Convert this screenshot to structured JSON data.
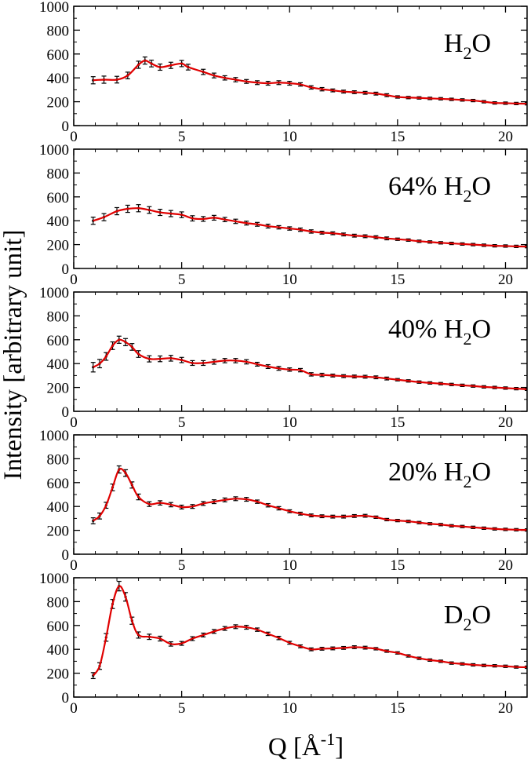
{
  "figure": {
    "ylabel": "Intensity [arbitrary unit]",
    "xlabel_main": "Q [",
    "xlabel_unit": "Å",
    "xlabel_exp": "-1",
    "xlabel_close": "]"
  },
  "chart_data": [
    {
      "type": "line",
      "panel_label": {
        "prefix": "",
        "main": "H",
        "sub": "2",
        "suffix": "O"
      },
      "xlim": [
        0,
        21
      ],
      "ylim": [
        0,
        1000
      ],
      "xticks": [
        0,
        5,
        10,
        15,
        20
      ],
      "yticks": [
        0,
        200,
        400,
        600,
        800,
        1000
      ],
      "xtick_labels": [
        "0",
        "5",
        "10",
        "15",
        "20"
      ],
      "ytick_labels": [
        "0",
        "200",
        "400",
        "600",
        "800",
        "1000"
      ],
      "series": [
        {
          "style": "data with error bars",
          "color": "#000000",
          "x": [
            0.9,
            1.4,
            2.0,
            2.5,
            3.0,
            3.3,
            3.6,
            4.0,
            4.5,
            5.0,
            5.3,
            6.0,
            6.5,
            7.0,
            7.5,
            8.0,
            8.5,
            9.0,
            9.5,
            10.0,
            10.5,
            11.0,
            11.5,
            12.0,
            12.5,
            13.0,
            13.5,
            14.0,
            14.5,
            15.0,
            15.5,
            16.0,
            16.5,
            17.0,
            17.5,
            18.0,
            18.5,
            19.0,
            19.5,
            20.0,
            20.5,
            21.0
          ],
          "y": [
            380,
            385,
            385,
            420,
            510,
            545,
            520,
            490,
            505,
            520,
            490,
            450,
            420,
            400,
            385,
            370,
            360,
            355,
            360,
            355,
            345,
            320,
            305,
            295,
            285,
            280,
            275,
            268,
            255,
            240,
            235,
            232,
            228,
            225,
            220,
            215,
            210,
            200,
            190,
            188,
            185,
            183
          ],
          "err": [
            30,
            30,
            28,
            28,
            30,
            30,
            28,
            26,
            26,
            26,
            24,
            22,
            20,
            18,
            18,
            16,
            16,
            16,
            16,
            16,
            14,
            14,
            14,
            12,
            12,
            12,
            12,
            12,
            12,
            10,
            10,
            10,
            10,
            10,
            10,
            10,
            10,
            10,
            10,
            10,
            10,
            10
          ]
        },
        {
          "style": "smoothed fit",
          "color": "#e00000"
        }
      ]
    },
    {
      "type": "line",
      "panel_label": {
        "prefix": "64% ",
        "main": "H",
        "sub": "2",
        "suffix": "O"
      },
      "xlim": [
        0,
        21
      ],
      "ylim": [
        0,
        1000
      ],
      "xticks": [
        0,
        5,
        10,
        15,
        20
      ],
      "yticks": [
        0,
        200,
        400,
        600,
        800,
        1000
      ],
      "xtick_labels": [
        "0",
        "5",
        "10",
        "15",
        "20"
      ],
      "ytick_labels": [
        "0",
        "200",
        "400",
        "600",
        "800",
        "1000"
      ],
      "series": [
        {
          "style": "data with error bars",
          "color": "#000000",
          "x": [
            0.9,
            1.4,
            2.0,
            2.5,
            3.0,
            3.5,
            4.0,
            4.5,
            5.0,
            5.5,
            6.0,
            6.5,
            7.0,
            7.5,
            8.0,
            8.5,
            9.0,
            9.5,
            10.0,
            10.5,
            11.0,
            11.5,
            12.0,
            12.5,
            13.0,
            13.5,
            14.0,
            14.5,
            15.0,
            15.5,
            16.0,
            16.5,
            17.0,
            17.5,
            18.0,
            18.5,
            19.0,
            19.5,
            20.0,
            20.5,
            21.0
          ],
          "y": [
            400,
            430,
            480,
            500,
            505,
            490,
            470,
            460,
            450,
            420,
            415,
            425,
            410,
            395,
            380,
            370,
            355,
            345,
            335,
            325,
            310,
            300,
            295,
            285,
            275,
            270,
            262,
            252,
            245,
            238,
            228,
            222,
            215,
            210,
            205,
            200,
            195,
            190,
            188,
            185,
            183
          ],
          "err": [
            30,
            30,
            30,
            30,
            30,
            28,
            26,
            26,
            24,
            22,
            20,
            20,
            18,
            18,
            16,
            16,
            16,
            14,
            14,
            14,
            14,
            12,
            12,
            12,
            12,
            12,
            12,
            12,
            10,
            10,
            10,
            10,
            10,
            10,
            10,
            10,
            10,
            10,
            10,
            10,
            10
          ]
        },
        {
          "style": "smoothed fit",
          "color": "#e00000"
        }
      ]
    },
    {
      "type": "line",
      "panel_label": {
        "prefix": "40% ",
        "main": "H",
        "sub": "2",
        "suffix": "O"
      },
      "xlim": [
        0,
        21
      ],
      "ylim": [
        0,
        1000
      ],
      "xticks": [
        0,
        5,
        10,
        15,
        20
      ],
      "yticks": [
        0,
        200,
        400,
        600,
        800,
        1000
      ],
      "xtick_labels": [
        "0",
        "5",
        "10",
        "15",
        "20"
      ],
      "ytick_labels": [
        "0",
        "200",
        "400",
        "600",
        "800",
        "1000"
      ],
      "series": [
        {
          "style": "data with error bars",
          "color": "#000000",
          "x": [
            0.9,
            1.2,
            1.5,
            1.8,
            2.1,
            2.4,
            2.7,
            3.0,
            3.5,
            4.0,
            4.5,
            5.0,
            5.5,
            6.0,
            6.5,
            7.0,
            7.5,
            8.0,
            8.5,
            9.0,
            9.5,
            10.0,
            10.5,
            11.0,
            11.5,
            12.0,
            12.5,
            13.0,
            13.5,
            14.0,
            14.5,
            15.0,
            15.5,
            16.0,
            16.5,
            17.0,
            17.5,
            18.0,
            18.5,
            19.0,
            19.5,
            20.0,
            20.5,
            21.0
          ],
          "y": [
            370,
            400,
            460,
            550,
            600,
            580,
            540,
            480,
            440,
            440,
            445,
            430,
            405,
            405,
            415,
            425,
            425,
            415,
            395,
            375,
            360,
            350,
            345,
            310,
            305,
            300,
            295,
            292,
            290,
            285,
            275,
            265,
            255,
            245,
            238,
            232,
            225,
            218,
            212,
            205,
            200,
            195,
            190,
            185
          ],
          "err": [
            40,
            35,
            32,
            32,
            30,
            30,
            28,
            28,
            26,
            24,
            24,
            22,
            20,
            20,
            20,
            18,
            18,
            18,
            16,
            16,
            16,
            14,
            14,
            14,
            14,
            12,
            12,
            12,
            12,
            12,
            12,
            10,
            10,
            10,
            10,
            10,
            10,
            10,
            10,
            10,
            10,
            10,
            10,
            10
          ]
        },
        {
          "style": "smoothed fit",
          "color": "#e00000"
        }
      ]
    },
    {
      "type": "line",
      "panel_label": {
        "prefix": "20% ",
        "main": "H",
        "sub": "2",
        "suffix": "O"
      },
      "xlim": [
        0,
        21
      ],
      "ylim": [
        0,
        1000
      ],
      "xticks": [
        0,
        5,
        10,
        15,
        20
      ],
      "yticks": [
        0,
        200,
        400,
        600,
        800,
        1000
      ],
      "xtick_labels": [
        "0",
        "5",
        "10",
        "15",
        "20"
      ],
      "ytick_labels": [
        "0",
        "200",
        "400",
        "600",
        "800",
        "1000"
      ],
      "series": [
        {
          "style": "data with error bars",
          "color": "#000000",
          "x": [
            0.9,
            1.2,
            1.5,
            1.8,
            2.1,
            2.4,
            2.7,
            3.0,
            3.5,
            4.0,
            4.5,
            5.0,
            5.5,
            6.0,
            6.5,
            7.0,
            7.5,
            8.0,
            8.5,
            9.0,
            9.5,
            10.0,
            10.5,
            11.0,
            11.5,
            12.0,
            12.5,
            13.0,
            13.5,
            14.0,
            14.5,
            15.0,
            15.5,
            16.0,
            16.5,
            17.0,
            17.5,
            18.0,
            18.5,
            19.0,
            19.5,
            20.0,
            20.5,
            21.0
          ],
          "y": [
            280,
            320,
            410,
            560,
            710,
            680,
            580,
            480,
            420,
            430,
            415,
            395,
            400,
            425,
            440,
            455,
            465,
            460,
            440,
            410,
            385,
            360,
            340,
            325,
            318,
            315,
            315,
            320,
            322,
            310,
            290,
            282,
            275,
            265,
            255,
            248,
            238,
            232,
            225,
            218,
            212,
            208,
            205,
            203
          ],
          "err": [
            25,
            25,
            25,
            28,
            30,
            28,
            26,
            24,
            20,
            18,
            18,
            16,
            16,
            16,
            16,
            16,
            16,
            16,
            14,
            14,
            14,
            12,
            12,
            12,
            12,
            12,
            12,
            12,
            12,
            10,
            10,
            10,
            10,
            10,
            10,
            10,
            10,
            10,
            10,
            10,
            10,
            10,
            10,
            10
          ]
        },
        {
          "style": "smoothed fit",
          "color": "#e00000"
        }
      ]
    },
    {
      "type": "line",
      "panel_label": {
        "prefix": "",
        "main": "D",
        "sub": "2",
        "suffix": "O"
      },
      "xlim": [
        0,
        21
      ],
      "ylim": [
        0,
        1000
      ],
      "xticks": [
        0,
        5,
        10,
        15,
        20
      ],
      "yticks": [
        0,
        200,
        400,
        600,
        800,
        1000
      ],
      "xtick_labels": [
        "0",
        "5",
        "10",
        "15",
        "20"
      ],
      "ytick_labels": [
        "0",
        "200",
        "400",
        "600",
        "800",
        "1000"
      ],
      "series": [
        {
          "style": "data with error bars",
          "color": "#000000",
          "x": [
            0.9,
            1.2,
            1.5,
            1.8,
            2.1,
            2.4,
            2.7,
            3.0,
            3.5,
            4.0,
            4.5,
            5.0,
            5.5,
            6.0,
            6.5,
            7.0,
            7.5,
            8.0,
            8.5,
            9.0,
            9.5,
            10.0,
            10.5,
            11.0,
            11.5,
            12.0,
            12.5,
            13.0,
            13.5,
            14.0,
            14.5,
            15.0,
            15.5,
            16.0,
            16.5,
            17.0,
            17.5,
            18.0,
            18.5,
            19.0,
            19.5,
            20.0,
            20.5,
            21.0
          ],
          "y": [
            180,
            260,
            500,
            780,
            930,
            840,
            640,
            520,
            505,
            490,
            445,
            450,
            490,
            520,
            550,
            575,
            590,
            585,
            565,
            530,
            495,
            455,
            425,
            400,
            405,
            408,
            412,
            418,
            414,
            405,
            385,
            370,
            345,
            325,
            310,
            300,
            285,
            278,
            270,
            265,
            262,
            258,
            252,
            250
          ],
          "err": [
            25,
            28,
            32,
            38,
            40,
            36,
            30,
            26,
            22,
            20,
            18,
            16,
            16,
            16,
            16,
            16,
            16,
            16,
            14,
            14,
            14,
            12,
            12,
            12,
            12,
            12,
            12,
            12,
            12,
            10,
            10,
            10,
            10,
            10,
            10,
            10,
            10,
            10,
            10,
            10,
            10,
            10,
            10,
            10
          ]
        },
        {
          "style": "smoothed fit",
          "color": "#e00000"
        }
      ]
    }
  ]
}
